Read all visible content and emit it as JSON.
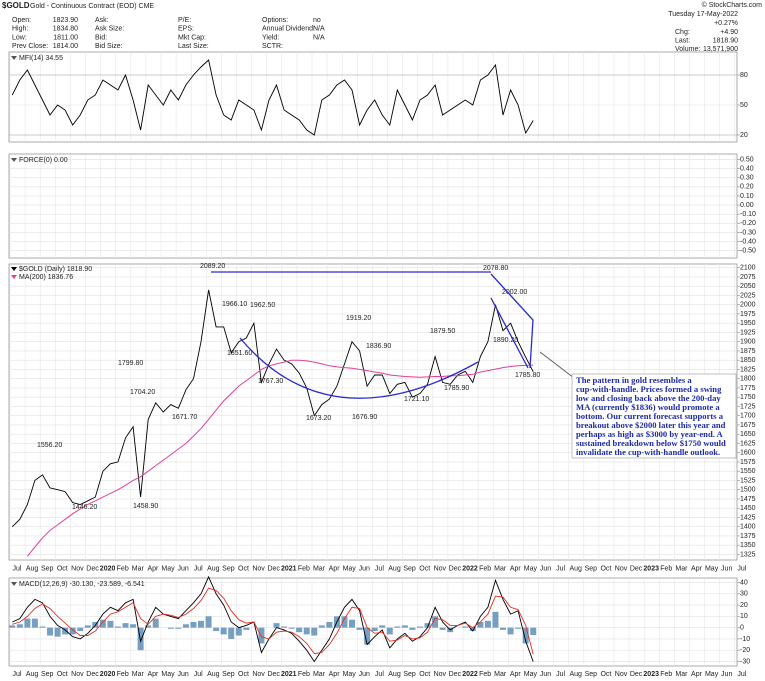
{
  "header": {
    "symbol": "$GOLD",
    "name": "Gold - Continuous Contract (EOD) CME",
    "columns": [
      [
        {
          "label": "Open:",
          "value": "1823.90"
        },
        {
          "label": "High:",
          "value": "1834.80"
        },
        {
          "label": "Low:",
          "value": "1811.00"
        },
        {
          "label": "Prev Close:",
          "value": "1814.00"
        }
      ],
      [
        {
          "label": "Ask:"
        },
        {
          "label": "Ask Size:"
        },
        {
          "label": "Bid:"
        },
        {
          "label": "Bid Size:"
        }
      ],
      [
        {
          "label": "P/E:"
        },
        {
          "label": "EPS:"
        },
        {
          "label": "Mkt Cap:"
        },
        {
          "label": "Last Size:"
        }
      ],
      [
        {
          "label": "Options:",
          "value": "no"
        },
        {
          "label": "Annual Dividend:",
          "value": "N/A"
        },
        {
          "label": "Yield:",
          "value": "N/A"
        },
        {
          "label": "SCTR:"
        }
      ]
    ],
    "copyright": "© StockCharts.com",
    "date": "Tuesday 17-May-2022",
    "change_pct": "+0.27%",
    "quote": [
      {
        "label": "Chg:",
        "value": "+4.90"
      },
      {
        "label": "Last:",
        "value": "1818.90"
      },
      {
        "label": "Volume:",
        "value": "13,571,900"
      }
    ]
  },
  "chart_data": [
    {
      "type": "line",
      "title": "MFI(14) 34.55",
      "color": "#000000",
      "values": [
        60,
        75,
        85,
        70,
        55,
        40,
        50,
        45,
        30,
        40,
        55,
        60,
        75,
        70,
        65,
        80,
        55,
        25,
        70,
        60,
        50,
        65,
        55,
        70,
        80,
        88,
        95,
        60,
        40,
        35,
        55,
        50,
        45,
        25,
        55,
        70,
        45,
        40,
        35,
        25,
        20,
        55,
        60,
        70,
        75,
        65,
        30,
        45,
        55,
        40,
        30,
        65,
        50,
        35,
        55,
        60,
        70,
        40,
        45,
        50,
        55,
        50,
        75,
        80,
        90,
        40,
        65,
        50,
        22,
        34.55
      ],
      "ylim": [
        13,
        103
      ],
      "yticks": [
        80,
        50,
        20
      ],
      "grid": true
    },
    {
      "type": "line",
      "title": "FORCE(0) 0.00",
      "ylim": [
        -0.58,
        0.56
      ],
      "yticks": [
        {
          "value": 0.5,
          "label": "0.50"
        },
        {
          "value": 0.4,
          "label": "0.40"
        },
        {
          "value": 0.3,
          "label": "0.30"
        },
        {
          "value": 0.2,
          "label": "0.20"
        },
        {
          "value": 0.1,
          "label": "0.10"
        },
        {
          "value": 0,
          "label": "0.00"
        },
        {
          "value": -0.1,
          "label": "-0.10"
        },
        {
          "value": -0.2,
          "label": "-0.20"
        },
        {
          "value": -0.3,
          "label": "-0.30"
        },
        {
          "value": -0.4,
          "label": "-0.40"
        },
        {
          "value": -0.5,
          "label": "-0.50"
        }
      ],
      "grid": true
    },
    {
      "type": "line",
      "grid": true,
      "series": [
        {
          "name": "$GOLD (Daily) 1818.90",
          "color": "#000000",
          "values": [
            1400,
            1420,
            1460,
            1525,
            1540,
            1505,
            1500,
            1495,
            1465,
            1460,
            1470,
            1480,
            1550,
            1570,
            1575,
            1640,
            1670,
            1480,
            1690,
            1735,
            1710,
            1730,
            1720,
            1770,
            1800,
            1900,
            2040,
            1940,
            1940,
            1870,
            1900,
            1910,
            1950,
            1790,
            1840,
            1880,
            1850,
            1840,
            1815,
            1775,
            1700,
            1730,
            1745,
            1780,
            1840,
            1900,
            1875,
            1780,
            1810,
            1810,
            1760,
            1785,
            1790,
            1750,
            1760,
            1785,
            1860,
            1790,
            1785,
            1810,
            1820,
            1790,
            1860,
            1900,
            2000,
            1930,
            1950,
            1900,
            1858,
            1818.9
          ]
        },
        {
          "name": "MA(200) 1836.76",
          "color": "#e0409a",
          "values": [
            null,
            null,
            1320,
            1345,
            1370,
            1390,
            1405,
            1420,
            1435,
            1448,
            1460,
            1470,
            1480,
            1490,
            1500,
            1512,
            1525,
            1535,
            1550,
            1565,
            1580,
            1595,
            1610,
            1625,
            1645,
            1665,
            1690,
            1715,
            1740,
            1760,
            1780,
            1795,
            1810,
            1825,
            1835,
            1840,
            1845,
            1850,
            1850,
            1848,
            1845,
            1840,
            1835,
            1832,
            1830,
            1828,
            1825,
            1822,
            1818,
            1815,
            1810,
            1808,
            1806,
            1805,
            1804,
            1805,
            1806,
            1806,
            1808,
            1808,
            1810,
            1812,
            1818,
            1822,
            1826,
            1830,
            1833,
            1835,
            1836,
            1836.76
          ]
        }
      ],
      "ylim": [
        1310,
        2110
      ],
      "yticks": [
        2100,
        2075,
        2050,
        2025,
        2000,
        1975,
        1950,
        1925,
        1900,
        1875,
        1850,
        1825,
        1800,
        1775,
        1750,
        1725,
        1700,
        1675,
        1650,
        1625,
        1600,
        1575,
        1550,
        1525,
        1500,
        1475,
        1450,
        1425,
        1400,
        1375,
        1350,
        1325
      ],
      "annotations": [
        "1556.20",
        "1446.20",
        "1799.80",
        "1704.20",
        "1458.90",
        "1671.70",
        "2089.20",
        "1966.10",
        "1962.50",
        "1851.60",
        "1767.30",
        "1919.20",
        "1836.90",
        "1673.20",
        "1879.50",
        "1721.10",
        "1676.90",
        "1785.90",
        "2078.80",
        "2002.00",
        "1890.20",
        "1785.80"
      ],
      "callout": [
        "The pattern in gold resembles a",
        "cup-with-handle. Prices formed a swing",
        "low and closing back above the 200-day",
        "MA (currently $1836) would promote a",
        "bottom. Our current forecast supports a",
        "breakout above $2000 later this year and",
        "perhaps as high as $3000 by year-end. A",
        "sustained breakdown below $1750 would",
        "invalidate the cup-with-handle outlook."
      ],
      "x_axis_labels": [
        "Jul",
        "Aug",
        "Sep",
        "Oct",
        "Nov",
        "Dec",
        "2020",
        "Feb",
        "Mar",
        "Apr",
        "May",
        "Jun",
        "Jul",
        "Aug",
        "Sep",
        "Oct",
        "Nov",
        "Dec",
        "2021",
        "Feb",
        "Mar",
        "Apr",
        "May",
        "Jun",
        "Jul",
        "Aug",
        "Sep",
        "Oct",
        "Nov",
        "Dec",
        "2022",
        "Feb",
        "Mar",
        "Apr",
        "May",
        "Jun",
        "Jul",
        "Aug",
        "Sep",
        "Oct",
        "Nov",
        "Dec",
        "2023",
        "Feb",
        "Mar",
        "Apr",
        "May",
        "Jun",
        "Jul"
      ]
    },
    {
      "type": "macd",
      "title": "MACD(12,26,9) -30.130, -23.589, -6.541",
      "grid": true,
      "macd": {
        "color": "#000000",
        "values": [
          5,
          8,
          18,
          25,
          22,
          10,
          2,
          -2,
          -8,
          -10,
          -5,
          2,
          12,
          18,
          15,
          22,
          25,
          -12,
          5,
          18,
          12,
          10,
          8,
          15,
          22,
          30,
          45,
          30,
          20,
          5,
          0,
          2,
          5,
          -22,
          -10,
          0,
          -2,
          -5,
          -12,
          -20,
          -30,
          -20,
          -10,
          5,
          18,
          25,
          15,
          -15,
          -8,
          -2,
          -18,
          -10,
          -5,
          -12,
          -8,
          0,
          18,
          5,
          -2,
          2,
          5,
          -3,
          10,
          18,
          42,
          25,
          12,
          15,
          -12,
          -30.13
        ]
      },
      "signal": {
        "color": "#e03020",
        "values": [
          3,
          5,
          10,
          17,
          21,
          17,
          10,
          4,
          -2,
          -7,
          -7,
          -3,
          5,
          12,
          14,
          18,
          22,
          8,
          3,
          10,
          12,
          11,
          9,
          12,
          17,
          24,
          35,
          33,
          26,
          15,
          7,
          4,
          5,
          -8,
          -10,
          -4,
          -3,
          -4,
          -8,
          -14,
          -23,
          -22,
          -15,
          -5,
          8,
          18,
          17,
          0,
          -5,
          -4,
          -12,
          -11,
          -7,
          -10,
          -9,
          -4,
          8,
          7,
          2,
          2,
          4,
          0,
          5,
          12,
          28,
          27,
          18,
          16,
          2,
          -23.589
        ]
      },
      "histogram": {
        "color": "#4a7fb0",
        "values": [
          2,
          3,
          8,
          8,
          1,
          -7,
          -8,
          -6,
          -6,
          -3,
          2,
          5,
          7,
          6,
          1,
          4,
          3,
          -20,
          2,
          8,
          0,
          -1,
          -1,
          3,
          5,
          6,
          10,
          -3,
          -6,
          -10,
          -7,
          -2,
          0,
          -14,
          0,
          4,
          1,
          -1,
          -4,
          -6,
          -7,
          2,
          5,
          10,
          10,
          7,
          -2,
          -15,
          -3,
          2,
          -6,
          1,
          2,
          -2,
          1,
          4,
          10,
          -2,
          -4,
          0,
          1,
          -3,
          5,
          6,
          14,
          -2,
          -6,
          -1,
          -14,
          -6.541
        ]
      },
      "ylim": [
        -34,
        44
      ],
      "yticks": [
        40,
        30,
        20,
        10,
        0,
        -10,
        -20,
        -30
      ]
    }
  ]
}
